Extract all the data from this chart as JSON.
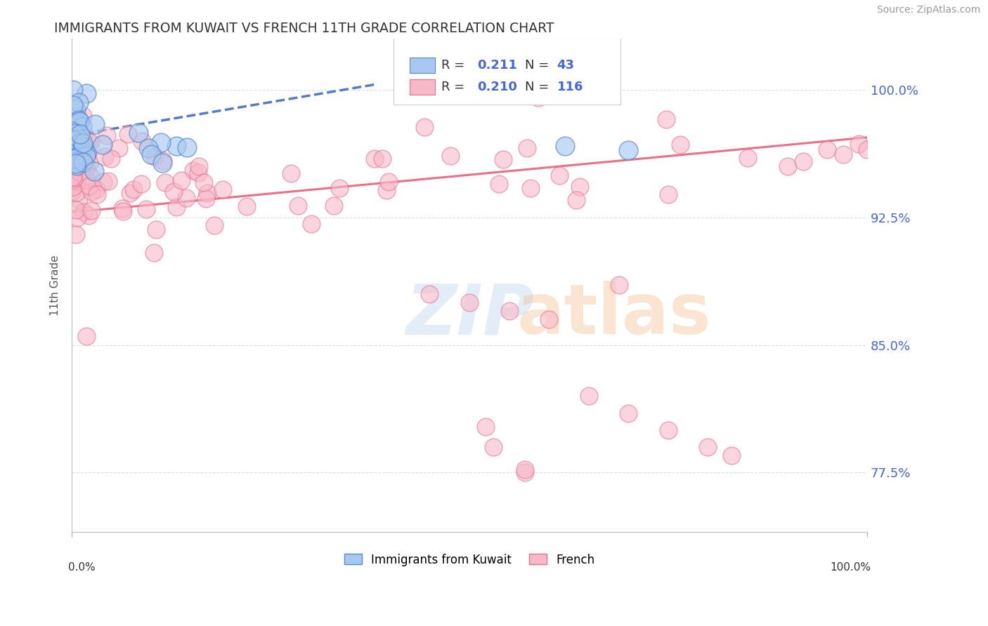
{
  "title": "IMMIGRANTS FROM KUWAIT VS FRENCH 11TH GRADE CORRELATION CHART",
  "source": "Source: ZipAtlas.com",
  "ylabel": "11th Grade",
  "ytick_labels": [
    "77.5%",
    "85.0%",
    "92.5%",
    "100.0%"
  ],
  "ytick_values": [
    0.775,
    0.85,
    0.925,
    1.0
  ],
  "xlim": [
    0.0,
    1.0
  ],
  "ylim": [
    0.74,
    1.03
  ],
  "legend_blue_r": "R = ",
  "legend_blue_r_val": "0.211",
  "legend_blue_n_label": "N = ",
  "legend_blue_n_val": "43",
  "legend_pink_r": "R = ",
  "legend_pink_r_val": "0.210",
  "legend_pink_n_label": "N = ",
  "legend_pink_n_val": "116",
  "legend_blue_label": "Immigrants from Kuwait",
  "legend_pink_label": "French",
  "blue_face_color": "#a8c8f0",
  "blue_edge_color": "#5588cc",
  "pink_face_color": "#f8b8c8",
  "pink_edge_color": "#e87090",
  "blue_line_color": "#3366bb",
  "pink_line_color": "#e8607a",
  "title_color": "#333333",
  "source_color": "#999999",
  "rn_text_color": "#333333",
  "rn_val_color": "#4466dd",
  "grid_color": "#dddddd",
  "ytick_color": "#4466dd",
  "blue_trend_x": [
    0.0,
    0.38
  ],
  "blue_trend_y": [
    0.973,
    1.003
  ],
  "pink_trend_x": [
    0.0,
    1.0
  ],
  "pink_trend_y": [
    0.928,
    0.972
  ]
}
